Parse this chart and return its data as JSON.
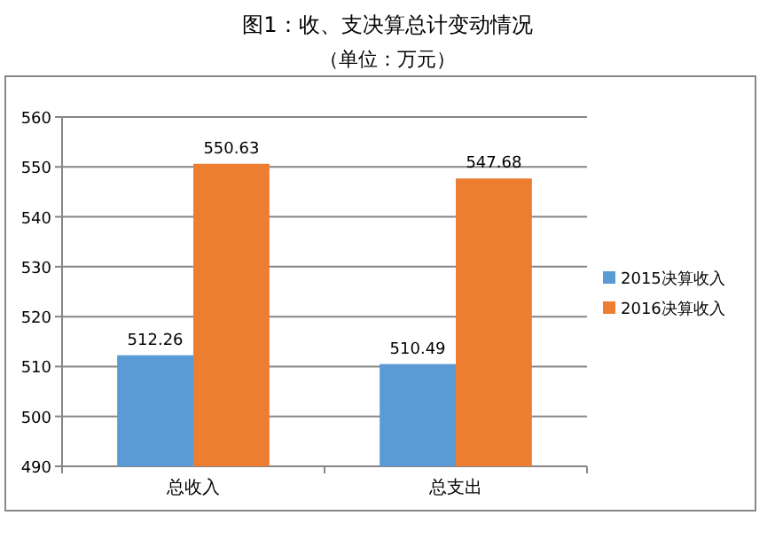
{
  "chart_data": {
    "type": "bar",
    "title": "图1：收、支决算总计变动情况",
    "subtitle": "（单位：万元）",
    "categories": [
      "总收入",
      "总支出"
    ],
    "series": [
      {
        "name": "2015决算收入",
        "color": "#5b9bd5",
        "values": [
          512.26,
          510.49
        ]
      },
      {
        "name": "2016决算收入",
        "color": "#ed7d31",
        "values": [
          550.63,
          547.68
        ]
      }
    ],
    "ylim": [
      490,
      560
    ],
    "yticks": [
      490,
      500,
      510,
      520,
      530,
      540,
      550,
      560
    ],
    "grid": "y",
    "legend": "right",
    "data_labels": true
  }
}
